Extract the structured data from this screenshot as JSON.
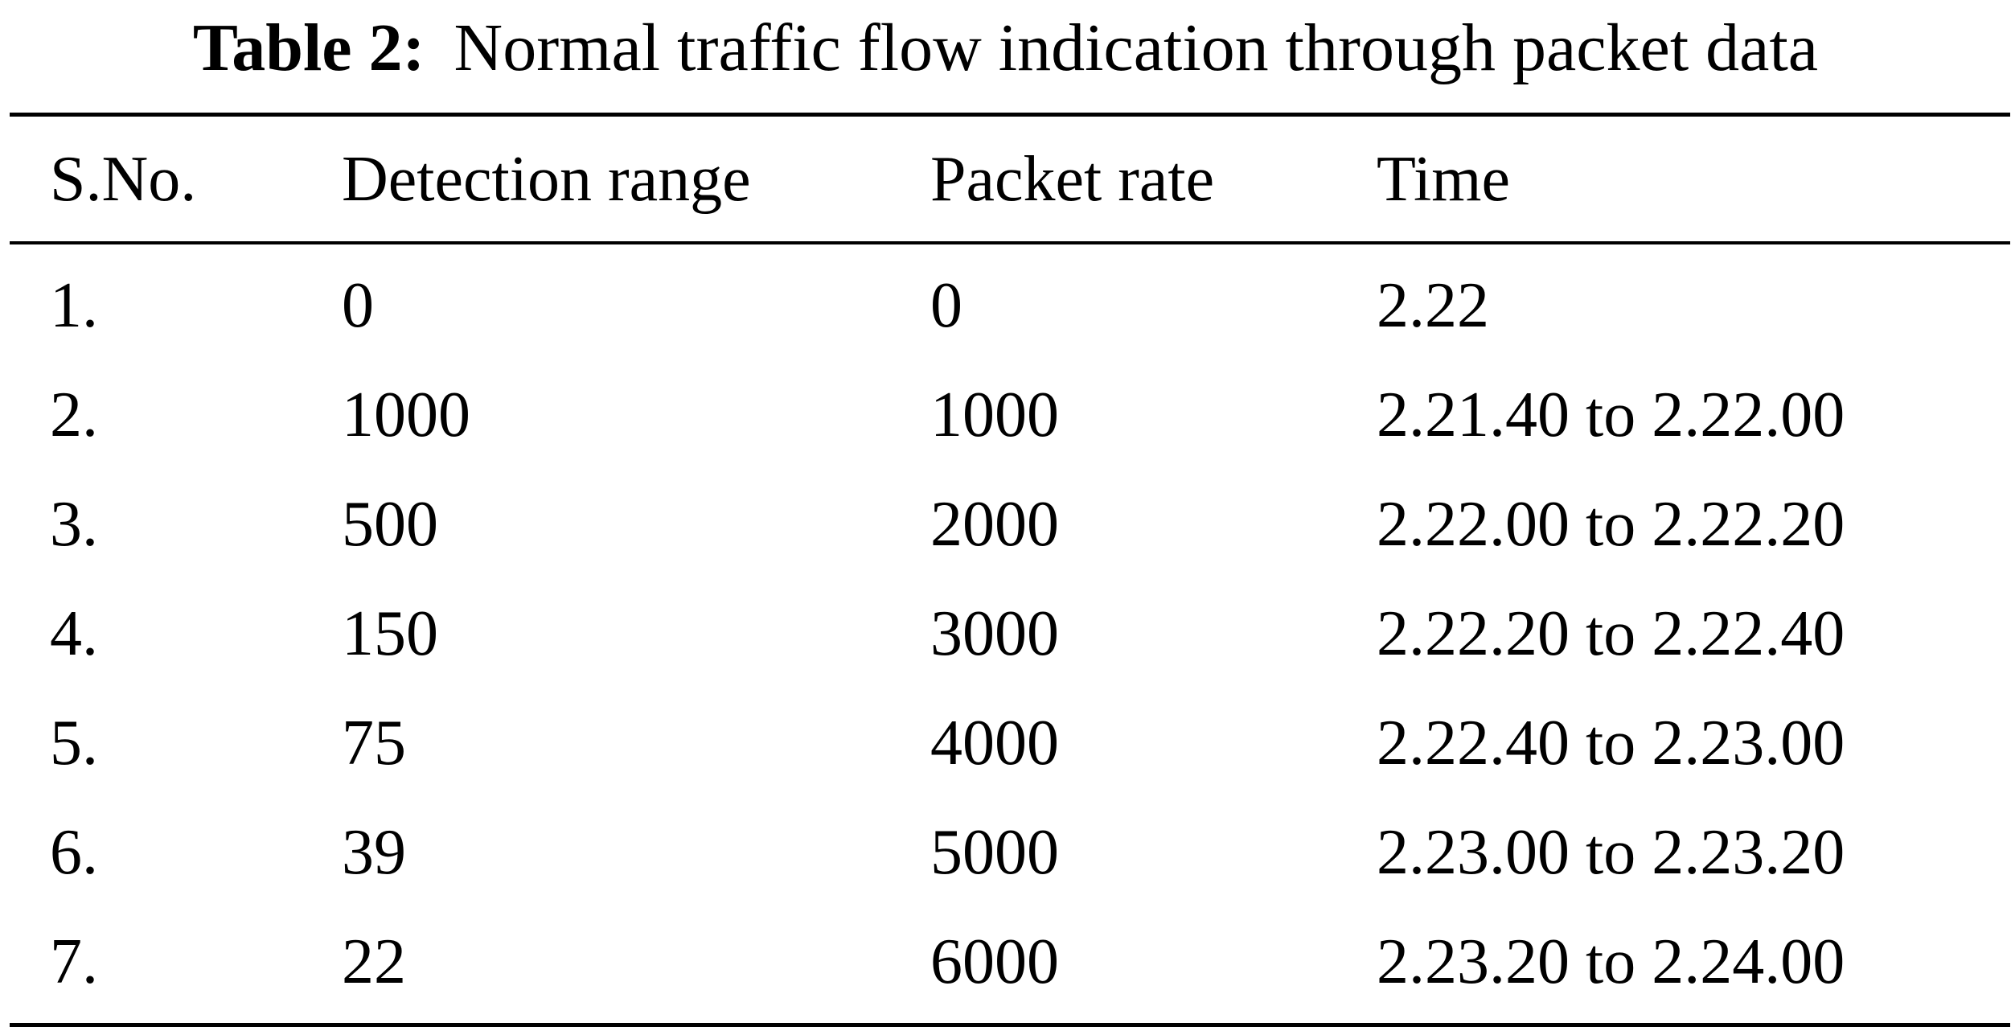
{
  "caption": {
    "label": "Table 2:",
    "text": "Normal traffic flow indication through packet data"
  },
  "table": {
    "headers": [
      "S.No.",
      "Detection range",
      "Packet rate",
      "Time"
    ],
    "rows": [
      [
        "1.",
        "0",
        "0",
        "2.22"
      ],
      [
        "2.",
        "1000",
        "1000",
        "2.21.40 to 2.22.00"
      ],
      [
        "3.",
        "500",
        "2000",
        "2.22.00 to 2.22.20"
      ],
      [
        "4.",
        "150",
        "3000",
        "2.22.20 to 2.22.40"
      ],
      [
        "5.",
        "75",
        "4000",
        "2.22.40 to 2.23.00"
      ],
      [
        "6.",
        "39",
        "5000",
        "2.23.00 to 2.23.20"
      ],
      [
        "7.",
        "22",
        "6000",
        "2.23.20 to 2.24.00"
      ]
    ]
  }
}
